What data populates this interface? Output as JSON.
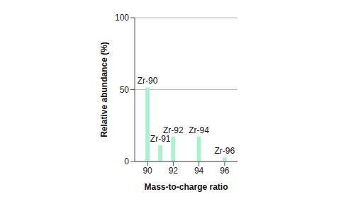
{
  "chart_data": {
    "type": "bar",
    "x_label": "Mass-to-charge ratio",
    "y_label": "Relative abundance (%)",
    "x": [
      90,
      91,
      92,
      94,
      96
    ],
    "values": [
      51.5,
      11.2,
      17.2,
      17.4,
      2.8
    ],
    "labels": [
      "Zr-90",
      "Zr-91",
      "Zr-92",
      "Zr-94",
      "Zr-96"
    ],
    "color": "#a7f3cf",
    "xlim": [
      89,
      97
    ],
    "xticks": [
      90,
      92,
      94,
      96
    ],
    "ylim": [
      0,
      100
    ],
    "yticks": [
      0,
      50,
      100
    ],
    "grid": true
  }
}
